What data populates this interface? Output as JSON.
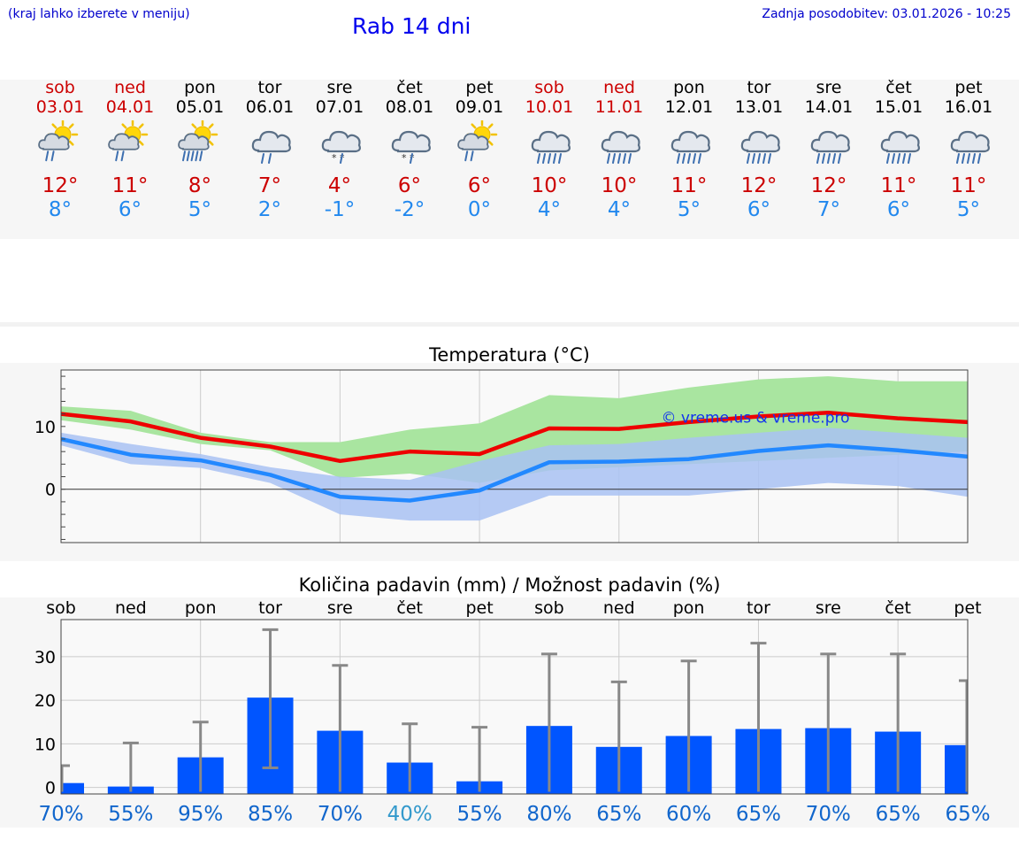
{
  "header": {
    "note": "(kraj lahko izberete v meniju)",
    "title": "Rab 14 dni",
    "updated": "Zadnja posodobitev: 03.01.2026 - 10:25"
  },
  "days": [
    {
      "name": "sob",
      "date": "03.01",
      "weekend": true,
      "icon": "sun-rain-icon",
      "tmax": "12°",
      "tmin": "8°"
    },
    {
      "name": "ned",
      "date": "04.01",
      "weekend": true,
      "icon": "sun-rain-icon",
      "tmax": "11°",
      "tmin": "6°"
    },
    {
      "name": "pon",
      "date": "05.01",
      "weekend": false,
      "icon": "sun-heavy-rain-icon",
      "tmax": "8°",
      "tmin": "5°"
    },
    {
      "name": "tor",
      "date": "06.01",
      "weekend": false,
      "icon": "cloud-rain-icon",
      "tmax": "7°",
      "tmin": "2°"
    },
    {
      "name": "sre",
      "date": "07.01",
      "weekend": false,
      "icon": "cloud-sleet-icon",
      "tmax": "4°",
      "tmin": "-1°"
    },
    {
      "name": "čet",
      "date": "08.01",
      "weekend": false,
      "icon": "cloud-sleet-icon",
      "tmax": "6°",
      "tmin": "-2°"
    },
    {
      "name": "pet",
      "date": "09.01",
      "weekend": false,
      "icon": "sun-cloud-rain-icon",
      "tmax": "6°",
      "tmin": "0°"
    },
    {
      "name": "sob",
      "date": "10.01",
      "weekend": true,
      "icon": "cloud-heavy-rain-icon",
      "tmax": "10°",
      "tmin": "4°"
    },
    {
      "name": "ned",
      "date": "11.01",
      "weekend": true,
      "icon": "cloud-heavy-rain-icon",
      "tmax": "10°",
      "tmin": "4°"
    },
    {
      "name": "pon",
      "date": "12.01",
      "weekend": false,
      "icon": "cloud-heavy-rain-icon",
      "tmax": "11°",
      "tmin": "5°"
    },
    {
      "name": "tor",
      "date": "13.01",
      "weekend": false,
      "icon": "cloud-heavy-rain-icon",
      "tmax": "12°",
      "tmin": "6°"
    },
    {
      "name": "sre",
      "date": "14.01",
      "weekend": false,
      "icon": "cloud-heavy-rain-icon",
      "tmax": "12°",
      "tmin": "7°"
    },
    {
      "name": "čet",
      "date": "15.01",
      "weekend": false,
      "icon": "cloud-heavy-rain-icon",
      "tmax": "11°",
      "tmin": "6°"
    },
    {
      "name": "pet",
      "date": "16.01",
      "weekend": false,
      "icon": "cloud-heavy-rain-icon",
      "tmax": "11°",
      "tmin": "5°"
    }
  ],
  "colors": {
    "weekend": "#cc0000",
    "tmax": "#cc0000",
    "tmin": "#2288ee",
    "bar": "#0055ff",
    "errorbar": "#888888",
    "maxline": "#ee0000",
    "minline": "#2288ff",
    "maxband": "#a9e5a0",
    "minband": "#a9c2f3",
    "overlap": "#7cc4a8",
    "prob_normal": "#1166cc",
    "prob_low": "#3399cc"
  },
  "chart_data": [
    {
      "type": "line",
      "title": "Temperatura (°C)",
      "watermark": "© vreme.us & vreme.pro",
      "ylim": [
        -8.5,
        19
      ],
      "yticks": [
        0,
        10
      ],
      "categories": [
        "03.01",
        "04.01",
        "05.01",
        "06.01",
        "07.01",
        "08.01",
        "09.01",
        "10.01",
        "11.01",
        "12.01",
        "13.01",
        "14.01",
        "15.01",
        "16.01"
      ],
      "series": [
        {
          "name": "max",
          "values": [
            12,
            10.8,
            8.2,
            6.8,
            4.5,
            6,
            5.6,
            9.7,
            9.6,
            10.7,
            11.6,
            12.2,
            11.3,
            10.7
          ],
          "band_low": [
            11,
            9.5,
            7.2,
            6.2,
            1.8,
            2.5,
            1,
            3,
            3.5,
            4,
            4.5,
            5,
            5.5,
            6
          ],
          "band_high": [
            13.2,
            12.5,
            9,
            7.5,
            7.5,
            9.5,
            10.5,
            15,
            14.5,
            16.2,
            17.5,
            18,
            17.2,
            17.2
          ]
        },
        {
          "name": "min",
          "values": [
            8,
            5.5,
            4.6,
            2.3,
            -1.2,
            -1.8,
            -0.2,
            4.3,
            4.4,
            4.8,
            6.1,
            7,
            6.2,
            5.2
          ],
          "band_low": [
            7,
            4,
            3.4,
            1,
            -4,
            -5,
            -5,
            -1,
            -1,
            -1,
            0,
            1,
            0.5,
            -1.2
          ],
          "band_high": [
            9,
            7.2,
            5.6,
            3.5,
            2,
            1.5,
            4.5,
            7,
            7.2,
            8.2,
            9,
            9.8,
            9,
            8.2
          ]
        }
      ]
    },
    {
      "type": "bar",
      "title": "Količina padavin (mm) / Možnost padavin (%)",
      "categories": [
        "sob",
        "ned",
        "pon",
        "tor",
        "sre",
        "čet",
        "pet",
        "sob",
        "ned",
        "pon",
        "tor",
        "sre",
        "čet",
        "pet"
      ],
      "ylim": [
        -1.5,
        38.5
      ],
      "yticks": [
        0,
        10,
        20,
        30
      ],
      "values": [
        1,
        0.2,
        6.9,
        20.6,
        13,
        5.7,
        1.4,
        14.1,
        9.3,
        11.8,
        13.4,
        13.6,
        12.8,
        9.7
      ],
      "err_low": [
        -1,
        -1,
        -1,
        4.5,
        -1,
        -1,
        -1,
        -1,
        -1,
        -1,
        -1,
        -1,
        -1,
        -1
      ],
      "err_high": [
        5,
        10.2,
        15,
        36.2,
        28,
        14.6,
        13.8,
        30.6,
        24.2,
        29,
        33.1,
        30.6,
        30.6,
        24.5
      ],
      "probability": [
        "70%",
        "55%",
        "95%",
        "85%",
        "70%",
        "40%",
        "55%",
        "80%",
        "65%",
        "60%",
        "65%",
        "70%",
        "65%",
        "65%"
      ]
    }
  ]
}
